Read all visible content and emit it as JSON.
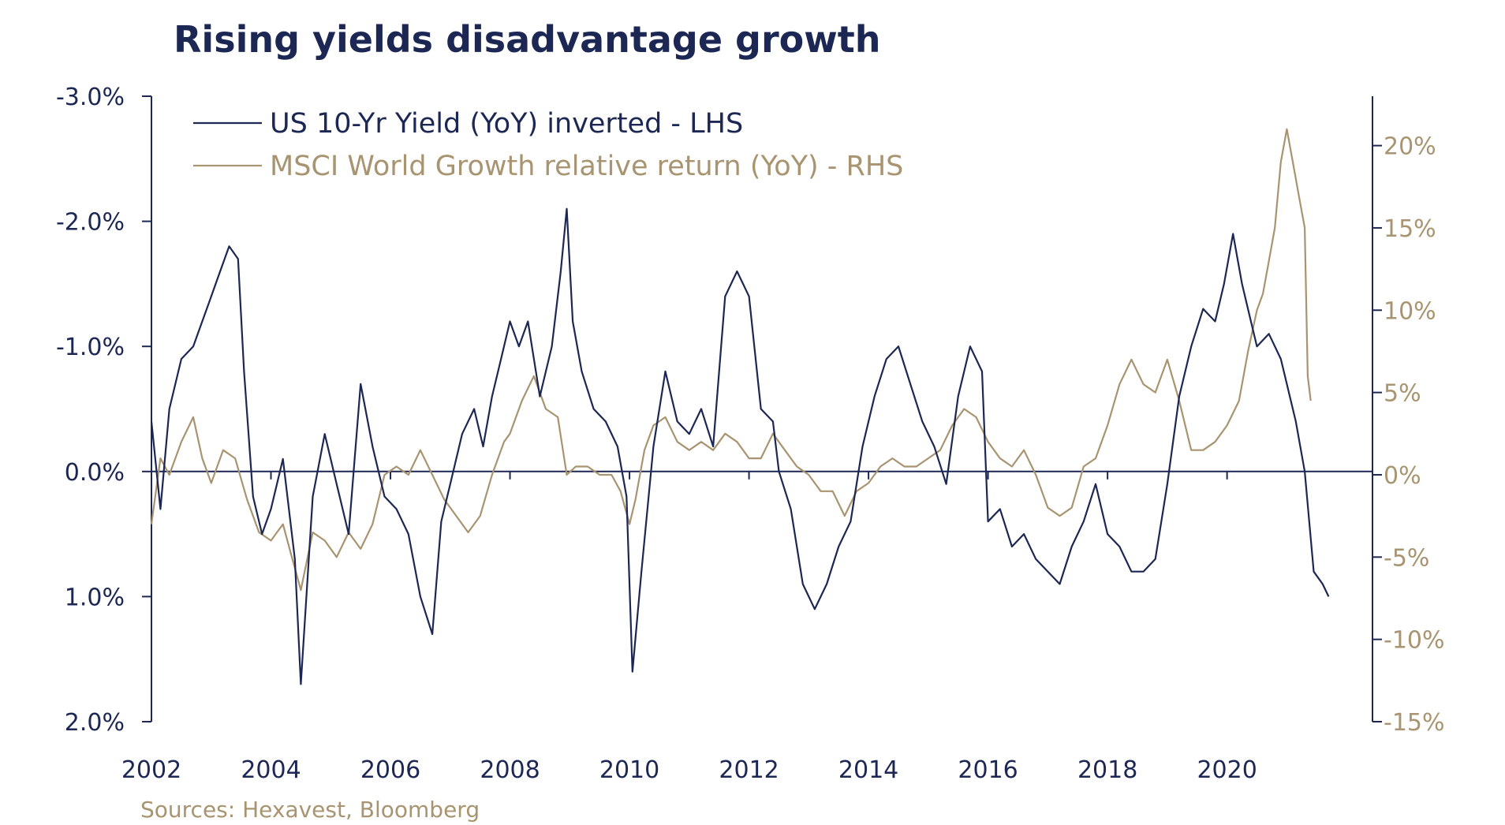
{
  "colors": {
    "navy": "#1c2754",
    "gold": "#a89470"
  },
  "footer": {
    "source": "Sources: Hexavest, Bloomberg"
  },
  "chart_data": {
    "type": "line",
    "title": "Rising yields disadvantage growth",
    "xlabel": "",
    "ylabel_left": "",
    "ylabel_right": "",
    "x_ticks": [
      "2002",
      "2004",
      "2006",
      "2008",
      "2010",
      "2012",
      "2014",
      "2016",
      "2018",
      "2020"
    ],
    "xlim": [
      2002.0,
      2021.8
    ],
    "left_axis": {
      "inverted": true,
      "ylim": [
        -3.0,
        2.0
      ],
      "ticks": [
        -3.0,
        -2.0,
        -1.0,
        0.0,
        1.0,
        2.0
      ],
      "tick_labels": [
        "-3.0%",
        "-2.0%",
        "-1.0%",
        "0.0%",
        "1.0%",
        "2.0%"
      ]
    },
    "right_axis": {
      "ylim": [
        -15,
        23
      ],
      "ticks": [
        20,
        15,
        10,
        5,
        0,
        -5,
        -10,
        -15
      ],
      "tick_labels": [
        "20%",
        "15%",
        "10%",
        "5%",
        "0%",
        "-5%",
        "-10%",
        "-15%"
      ]
    },
    "legend": {
      "position": "top-left"
    },
    "series": [
      {
        "name": "US 10-Yr Yield (YoY) inverted - LHS",
        "axis": "left",
        "color": "#1c2754",
        "x": [
          2002.0,
          2002.15,
          2002.3,
          2002.5,
          2002.7,
          2002.85,
          2003.0,
          2003.15,
          2003.3,
          2003.45,
          2003.55,
          2003.7,
          2003.85,
          2004.0,
          2004.2,
          2004.4,
          2004.5,
          2004.7,
          2004.9,
          2005.1,
          2005.3,
          2005.5,
          2005.7,
          2005.9,
          2006.1,
          2006.3,
          2006.5,
          2006.7,
          2006.85,
          2007.0,
          2007.2,
          2007.4,
          2007.55,
          2007.7,
          2007.85,
          2008.0,
          2008.15,
          2008.3,
          2008.5,
          2008.7,
          2008.85,
          2008.95,
          2009.05,
          2009.2,
          2009.4,
          2009.6,
          2009.8,
          2009.95,
          2010.05,
          2010.2,
          2010.4,
          2010.6,
          2010.8,
          2011.0,
          2011.2,
          2011.4,
          2011.6,
          2011.8,
          2011.9,
          2012.0,
          2012.2,
          2012.4,
          2012.5,
          2012.7,
          2012.9,
          2013.1,
          2013.3,
          2013.5,
          2013.7,
          2013.9,
          2014.1,
          2014.3,
          2014.5,
          2014.7,
          2014.9,
          2015.1,
          2015.3,
          2015.5,
          2015.7,
          2015.9,
          2016.0,
          2016.2,
          2016.4,
          2016.6,
          2016.8,
          2017.0,
          2017.2,
          2017.4,
          2017.6,
          2017.8,
          2018.0,
          2018.2,
          2018.4,
          2018.6,
          2018.8,
          2019.0,
          2019.2,
          2019.4,
          2019.6,
          2019.8,
          2019.95,
          2020.1,
          2020.25,
          2020.4,
          2020.5,
          2020.7,
          2020.9,
          2021.0,
          2021.15,
          2021.3,
          2021.45,
          2021.6,
          2021.7
        ],
        "values": [
          -0.4,
          0.3,
          -0.5,
          -0.9,
          -1.0,
          -1.2,
          -1.4,
          -1.6,
          -1.8,
          -1.7,
          -0.8,
          0.2,
          0.5,
          0.3,
          -0.1,
          0.7,
          1.7,
          0.2,
          -0.3,
          0.1,
          0.5,
          -0.7,
          -0.2,
          0.2,
          0.3,
          0.5,
          1.0,
          1.3,
          0.4,
          0.1,
          -0.3,
          -0.5,
          -0.2,
          -0.6,
          -0.9,
          -1.2,
          -1.0,
          -1.2,
          -0.6,
          -1.0,
          -1.6,
          -2.1,
          -1.2,
          -0.8,
          -0.5,
          -0.4,
          -0.2,
          0.2,
          1.6,
          0.8,
          -0.2,
          -0.8,
          -0.4,
          -0.3,
          -0.5,
          -0.2,
          -1.4,
          -1.6,
          -1.5,
          -1.4,
          -0.5,
          -0.4,
          0.0,
          0.3,
          0.9,
          1.1,
          0.9,
          0.6,
          0.4,
          -0.2,
          -0.6,
          -0.9,
          -1.0,
          -0.7,
          -0.4,
          -0.2,
          0.1,
          -0.6,
          -1.0,
          -0.8,
          0.4,
          0.3,
          0.6,
          0.5,
          0.7,
          0.8,
          0.9,
          0.6,
          0.4,
          0.1,
          0.5,
          0.6,
          0.8,
          0.8,
          0.7,
          0.1,
          -0.6,
          -1.0,
          -1.3,
          -1.2,
          -1.5,
          -1.9,
          -1.5,
          -1.2,
          -1.0,
          -1.1,
          -0.9,
          -0.7,
          -0.4,
          0.0,
          0.8,
          0.9,
          1.0
        ]
      },
      {
        "name": "MSCI World Growth relative return (YoY) - RHS",
        "axis": "right",
        "color": "#a89470",
        "x": [
          2002.0,
          2002.15,
          2002.3,
          2002.5,
          2002.7,
          2002.85,
          2003.0,
          2003.2,
          2003.4,
          2003.6,
          2003.8,
          2004.0,
          2004.2,
          2004.35,
          2004.5,
          2004.7,
          2004.9,
          2005.1,
          2005.3,
          2005.5,
          2005.7,
          2005.9,
          2006.1,
          2006.3,
          2006.5,
          2006.7,
          2006.9,
          2007.1,
          2007.3,
          2007.5,
          2007.7,
          2007.9,
          2008.0,
          2008.2,
          2008.4,
          2008.6,
          2008.8,
          2008.95,
          2009.1,
          2009.3,
          2009.5,
          2009.7,
          2009.85,
          2010.0,
          2010.1,
          2010.25,
          2010.4,
          2010.6,
          2010.8,
          2011.0,
          2011.2,
          2011.4,
          2011.6,
          2011.8,
          2012.0,
          2012.2,
          2012.4,
          2012.6,
          2012.8,
          2013.0,
          2013.2,
          2013.4,
          2013.6,
          2013.8,
          2014.0,
          2014.2,
          2014.4,
          2014.6,
          2014.8,
          2015.0,
          2015.2,
          2015.4,
          2015.6,
          2015.8,
          2016.0,
          2016.2,
          2016.4,
          2016.6,
          2016.8,
          2017.0,
          2017.2,
          2017.4,
          2017.6,
          2017.8,
          2018.0,
          2018.2,
          2018.4,
          2018.6,
          2018.8,
          2019.0,
          2019.2,
          2019.4,
          2019.6,
          2019.8,
          2020.0,
          2020.2,
          2020.35,
          2020.5,
          2020.6,
          2020.7,
          2020.8,
          2020.9,
          2021.0,
          2021.1,
          2021.2,
          2021.3,
          2021.35,
          2021.4
        ],
        "values": [
          -3.0,
          1.0,
          0.0,
          2.0,
          3.5,
          1.0,
          -0.5,
          1.5,
          1.0,
          -1.5,
          -3.5,
          -4.0,
          -3.0,
          -5.0,
          -7.0,
          -3.5,
          -4.0,
          -5.0,
          -3.5,
          -4.5,
          -3.0,
          0.0,
          0.5,
          0.0,
          1.5,
          0.0,
          -1.5,
          -2.5,
          -3.5,
          -2.5,
          0.0,
          2.0,
          2.5,
          4.5,
          6.0,
          4.0,
          3.5,
          0.0,
          0.5,
          0.5,
          0.0,
          0.0,
          -1.0,
          -3.0,
          -1.5,
          1.5,
          3.0,
          3.5,
          2.0,
          1.5,
          2.0,
          1.5,
          2.5,
          2.0,
          1.0,
          1.0,
          2.5,
          1.5,
          0.5,
          0.0,
          -1.0,
          -1.0,
          -2.5,
          -1.0,
          -0.5,
          0.5,
          1.0,
          0.5,
          0.5,
          1.0,
          1.5,
          3.0,
          4.0,
          3.5,
          2.0,
          1.0,
          0.5,
          1.5,
          0.0,
          -2.0,
          -2.5,
          -2.0,
          0.5,
          1.0,
          3.0,
          5.5,
          7.0,
          5.5,
          5.0,
          7.0,
          4.5,
          1.5,
          1.5,
          2.0,
          3.0,
          4.5,
          7.5,
          10.0,
          11.0,
          13.0,
          15.0,
          19.0,
          21.0,
          19.0,
          17.0,
          15.0,
          6.0,
          4.5
        ]
      }
    ]
  }
}
